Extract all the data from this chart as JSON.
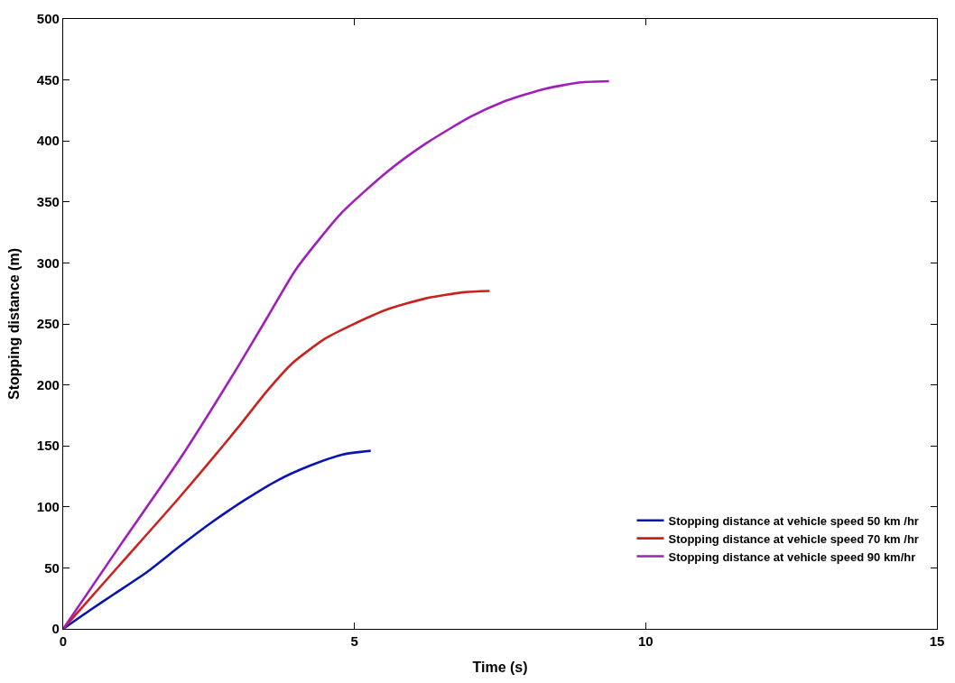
{
  "chart_data": {
    "type": "line",
    "xlabel": "Time (s)",
    "ylabel": "Stopping distance (m)",
    "xlim": [
      0,
      15
    ],
    "xticks": [
      0,
      5,
      10,
      15
    ],
    "ylim": [
      0,
      500
    ],
    "yticks": [
      0,
      50,
      100,
      150,
      200,
      250,
      300,
      350,
      400,
      450,
      500
    ],
    "legend": "bottom right",
    "marker": "none",
    "line_style": "solid",
    "series": [
      {
        "name": "Stopping distance at vehicle speed 50 km /hr",
        "color": "#0a14b4",
        "x": [
          0,
          0.45,
          0.89,
          1.45,
          2.01,
          2.57,
          3.13,
          3.69,
          4.25,
          4.8,
          5.28
        ],
        "values": [
          0,
          15,
          29,
          47,
          68,
          88,
          106,
          122,
          134,
          143,
          146
        ]
      },
      {
        "name": "Stopping distance at vehicle speed 70 km /hr",
        "color": "#c8231e",
        "x": [
          0,
          1,
          2,
          3,
          3.5,
          3.94,
          4.5,
          4.95,
          5.57,
          6.23,
          6.89,
          7.32
        ],
        "values": [
          0,
          54,
          108,
          165,
          195,
          218,
          238,
          249,
          262,
          271,
          276,
          277
        ]
      },
      {
        "name": "Stopping distance at vehicle speed 90 km/hr",
        "color": "#a01eb9",
        "x": [
          0,
          1,
          2,
          3,
          3.5,
          4,
          4.78,
          5.57,
          6.23,
          7,
          7.55,
          8.21,
          8.88,
          9.37
        ],
        "values": [
          0,
          70,
          139,
          215,
          255,
          295,
          341,
          375,
          398,
          420,
          432,
          442,
          448,
          449
        ]
      }
    ]
  }
}
